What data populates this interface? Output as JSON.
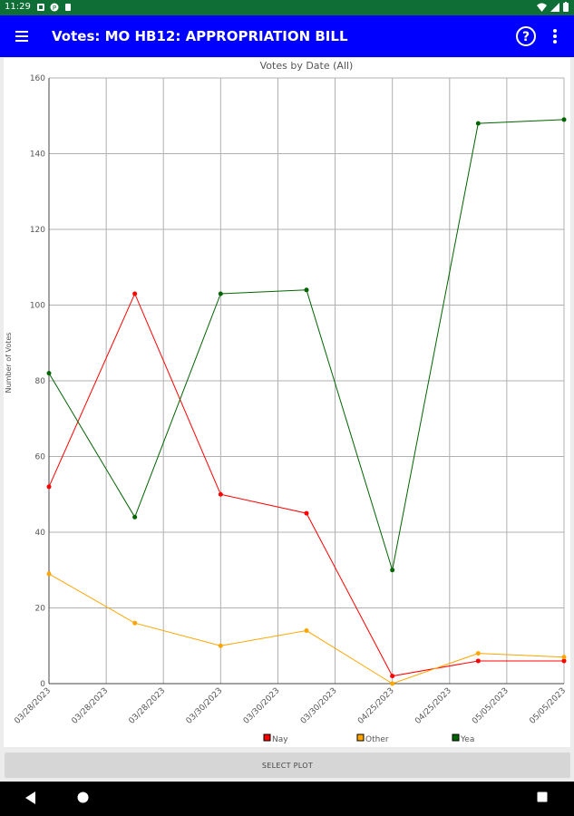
{
  "status_bar": {
    "time": "11:29"
  },
  "app_bar": {
    "title": "Votes: MO HB12: APPROPRIATION BILL"
  },
  "chart_data": {
    "type": "line",
    "title": "Votes by Date (All)",
    "xlabel": "",
    "ylabel": "Number of Votes",
    "ylim": [
      0,
      160
    ],
    "yticks": [
      0,
      20,
      40,
      60,
      80,
      100,
      120,
      140,
      160
    ],
    "grid": true,
    "legend_placement": "bottom",
    "x_tick_labels": [
      "03/28/2023",
      "03/28/2023",
      "03/28/2023",
      "03/30/2023",
      "03/30/2023",
      "03/30/2023",
      "04/25/2023",
      "04/25/2023",
      "05/05/2023",
      "05/05/2023"
    ],
    "x_tick_positions": [
      0,
      0.667,
      1.333,
      2,
      2.667,
      3.333,
      4,
      4.667,
      5.333,
      6
    ],
    "x_points": [
      0,
      1,
      2,
      3,
      4,
      5,
      6
    ],
    "series": [
      {
        "name": "Nay",
        "color": "#ff0000",
        "values": [
          52,
          103,
          50,
          45,
          2,
          6,
          6
        ]
      },
      {
        "name": "Other",
        "color": "#ffa500",
        "values": [
          29,
          16,
          10,
          14,
          0,
          8,
          7
        ]
      },
      {
        "name": "Yea",
        "color": "#006400",
        "values": [
          82,
          44,
          103,
          104,
          30,
          148,
          149
        ]
      }
    ]
  },
  "select_plot": {
    "label": "SELECT PLOT"
  }
}
